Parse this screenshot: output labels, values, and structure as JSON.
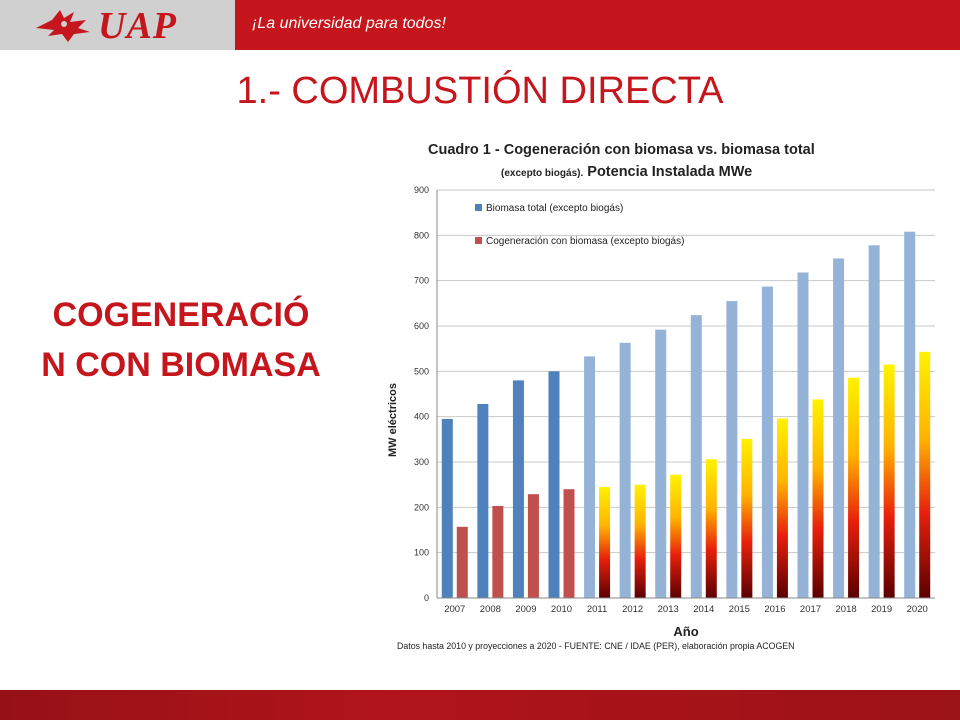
{
  "header": {
    "logo_text": "UAP",
    "slogan": "¡La universidad para todos!",
    "brand_color": "#c4161c"
  },
  "slide": {
    "title": "1.- COMBUSTIÓN DIRECTA",
    "side_title_line1": "COGENERACIÓ",
    "side_title_line2": "N CON BIOMASA"
  },
  "chart_data": {
    "type": "bar",
    "title_line1": "Cuadro 1 - Cogeneración con biomasa vs. biomasa total",
    "title_line2_small": "(excepto biogás).",
    "title_line2_main": " Potencia Instalada MWe",
    "xlabel": "Año",
    "ylabel": "MW eléctricos",
    "ylim": [
      0,
      900
    ],
    "yticks": [
      0,
      100,
      200,
      300,
      400,
      500,
      600,
      700,
      800,
      900
    ],
    "categories": [
      "2007",
      "2008",
      "2009",
      "2010",
      "2011",
      "2012",
      "2013",
      "2014",
      "2015",
      "2016",
      "2017",
      "2018",
      "2019",
      "2020"
    ],
    "projection_start_index": 4,
    "grid": true,
    "legend_position": "top-left",
    "series": [
      {
        "name": "Biomasa total (excepto biogás)",
        "color": "#4f81bd",
        "projection_color": "#95b3d7",
        "values": [
          395,
          428,
          480,
          500,
          533,
          563,
          592,
          624,
          655,
          687,
          718,
          749,
          778,
          808
        ]
      },
      {
        "name": "Cogeneración con biomasa (excepto biogás)",
        "color": "#c0504d",
        "projection_color": "gradient-yellow-red",
        "values": [
          157,
          203,
          229,
          240,
          245,
          250,
          272,
          306,
          351,
          396,
          438,
          486,
          515,
          543
        ]
      }
    ],
    "footnote": "Datos hasta 2010 y proyecciones a 2020 - FUENTE: CNE / IDAE (PER), elaboración propia ACOGEN"
  }
}
